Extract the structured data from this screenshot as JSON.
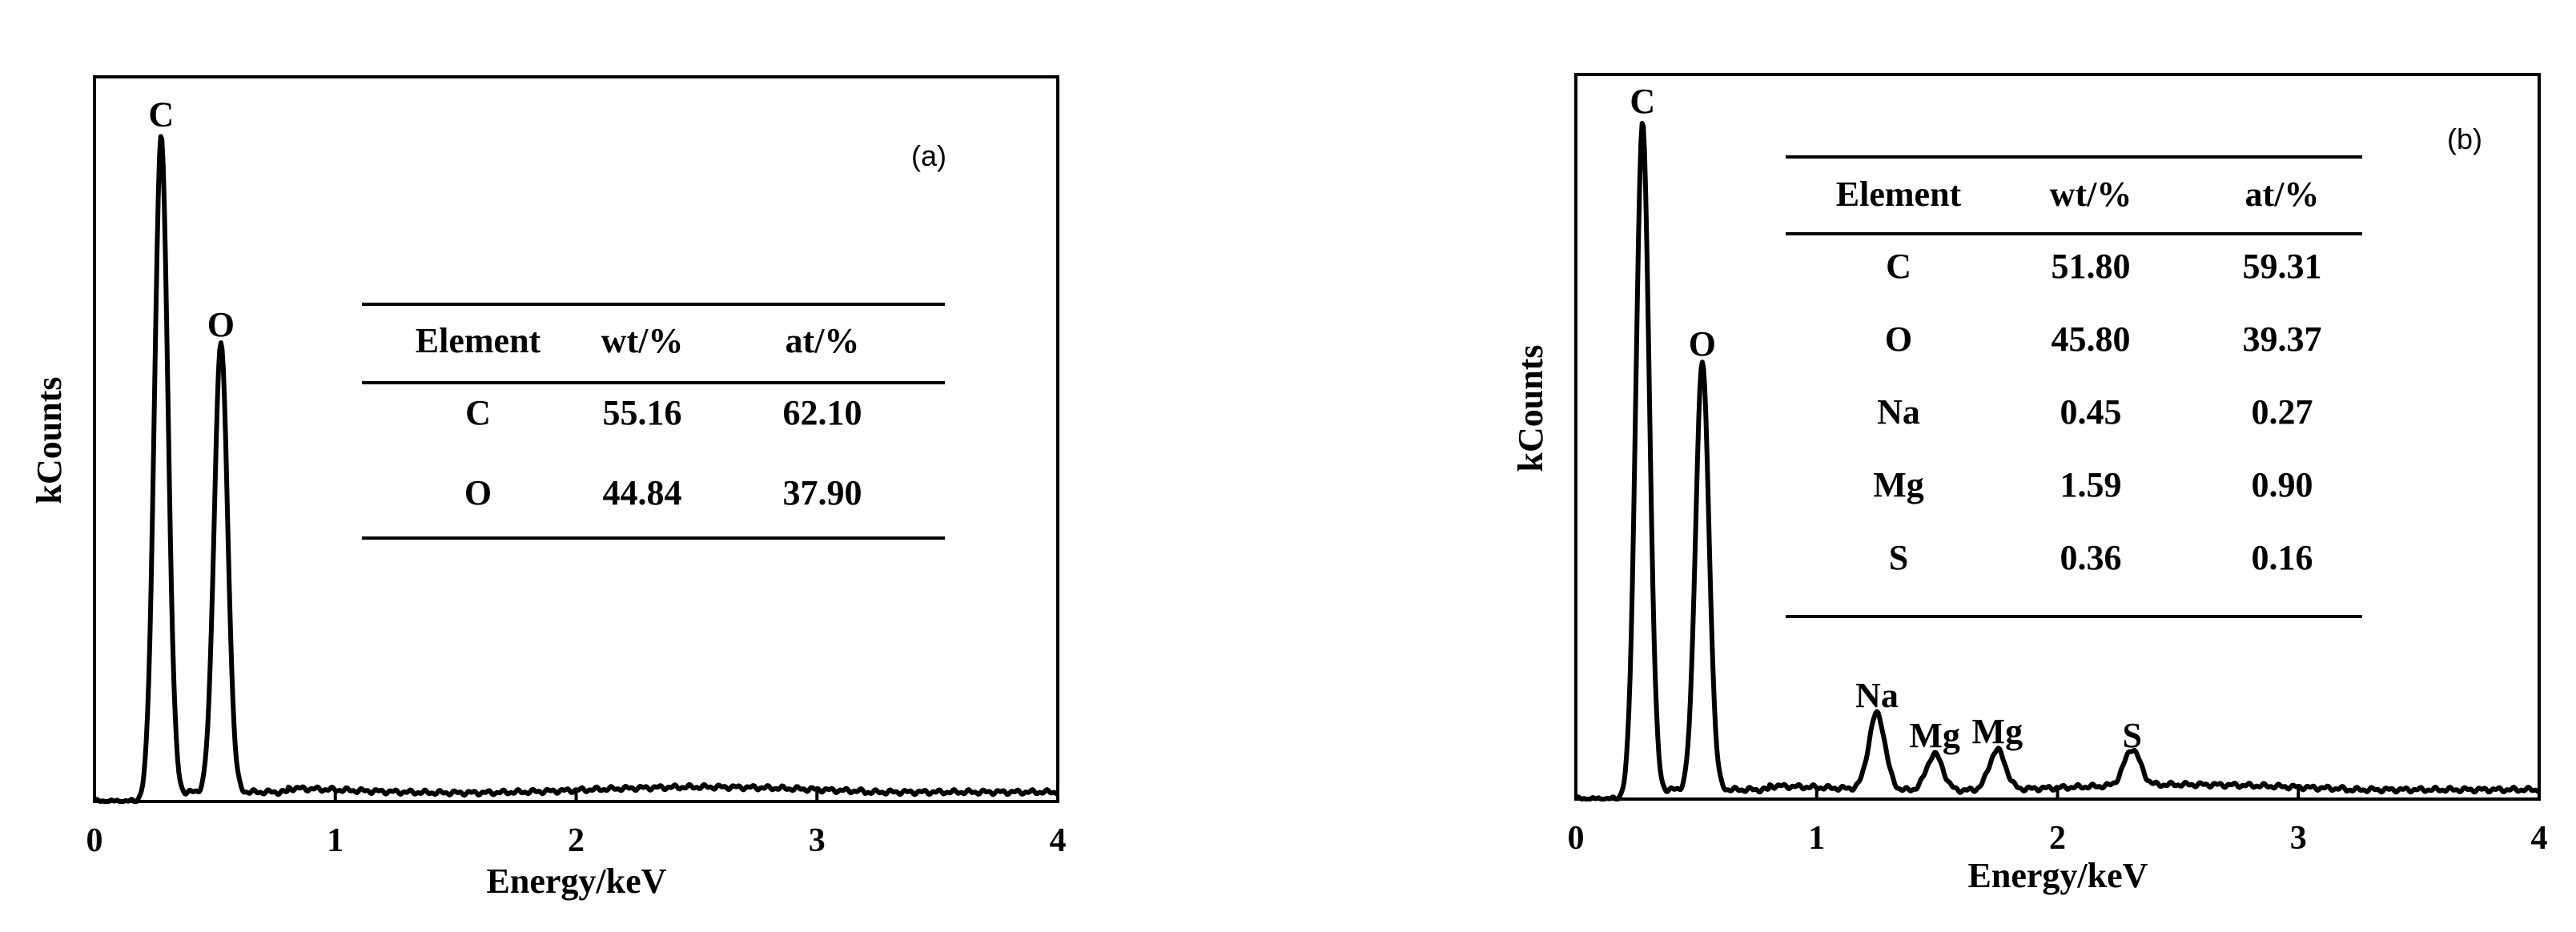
{
  "chart_data": [
    {
      "type": "line",
      "panel_label": "(a)",
      "xlabel": "Energy/keV",
      "ylabel": "kCounts",
      "xlim": [
        0,
        4
      ],
      "ylim": [
        0,
        1
      ],
      "x_ticks": [
        "0",
        "1",
        "2",
        "3",
        "4"
      ],
      "peaks": [
        {
          "name": "C",
          "x": 0.277,
          "y": 0.91
        },
        {
          "name": "O",
          "x": 0.525,
          "y": 0.62
        }
      ],
      "peak_width": 0.028,
      "baseline": 0.013,
      "table": {
        "headers": [
          "Element",
          "wt/%",
          "at/%"
        ],
        "rows": [
          [
            "C",
            "55.16",
            "62.10"
          ],
          [
            "O",
            "44.84",
            "37.90"
          ]
        ]
      }
    },
    {
      "type": "line",
      "panel_label": "(b)",
      "xlabel": "Energy/keV",
      "ylabel": "kCounts",
      "xlim": [
        0,
        4
      ],
      "ylim": [
        0,
        1
      ],
      "x_ticks": [
        "0",
        "1",
        "2",
        "3",
        "4"
      ],
      "peaks": [
        {
          "name": "C",
          "x": 0.277,
          "y": 0.925
        },
        {
          "name": "O",
          "x": 0.525,
          "y": 0.59
        },
        {
          "name": "Na",
          "x": 1.25,
          "y": 0.105
        },
        {
          "name": "Mg",
          "x": 1.49,
          "y": 0.05
        },
        {
          "name": "Mg",
          "x": 1.75,
          "y": 0.055
        },
        {
          "name": "S",
          "x": 2.31,
          "y": 0.05
        }
      ],
      "peak_width": 0.028,
      "baseline": 0.013,
      "table": {
        "headers": [
          "Element",
          "wt/%",
          "at/%"
        ],
        "rows": [
          [
            "C",
            "51.80",
            "59.31"
          ],
          [
            "O",
            "45.80",
            "39.37"
          ],
          [
            "Na",
            "0.45",
            "0.27"
          ],
          [
            "Mg",
            "1.59",
            "0.90"
          ],
          [
            "S",
            "0.36",
            "0.16"
          ]
        ]
      }
    }
  ]
}
